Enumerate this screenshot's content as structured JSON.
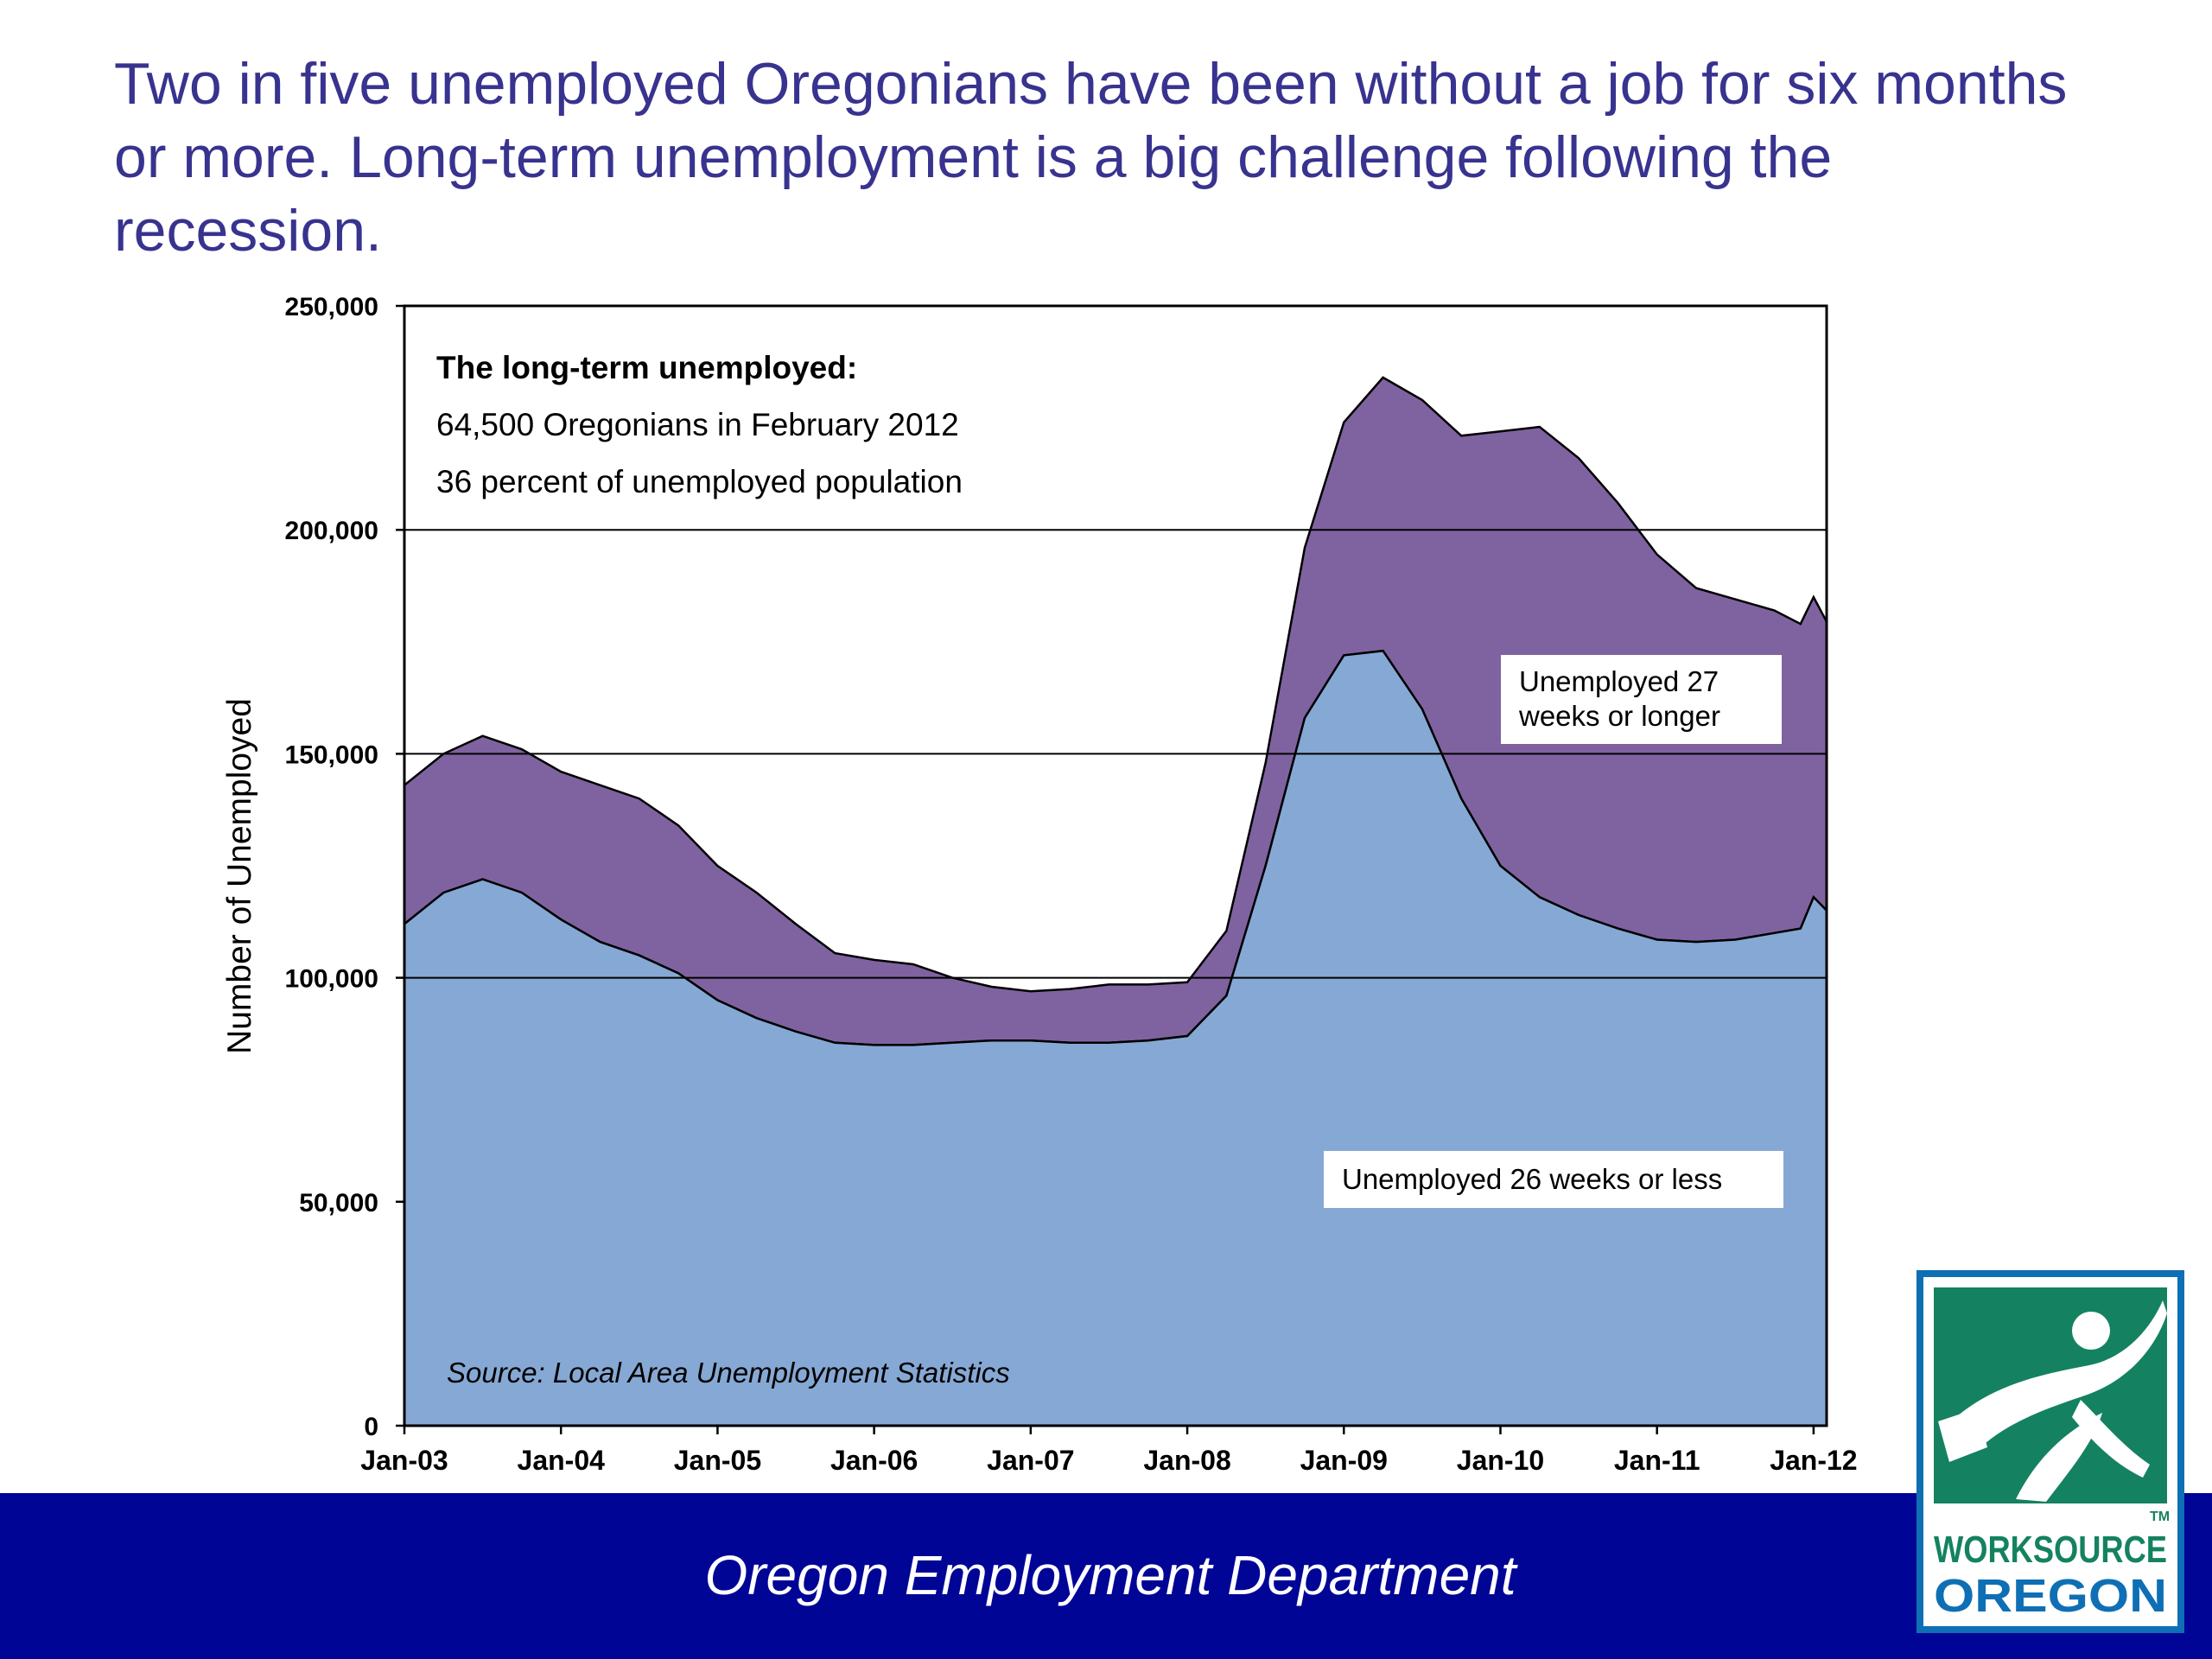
{
  "slide": {
    "title": "Two in five unemployed Oregonians have been without a job for six months or more. Long-term unemployment is a big challenge following the recession.",
    "footer": "Oregon Employment Department"
  },
  "logo": {
    "line1": "WORKSOURCE",
    "line2": "OREGON",
    "tm": "TM",
    "colors": {
      "frame": "#0f6fb5",
      "field": "#148260",
      "figure": "#ffffff"
    }
  },
  "annotation": {
    "heading": "The long-term unemployed:",
    "line1": "64,500 Oregonians in February 2012",
    "line2": "36 percent of unemployed population"
  },
  "source": "Source: Local Area Unemployment Statistics",
  "chart_data": {
    "type": "area",
    "stacked": true,
    "title": "",
    "xlabel": "",
    "ylabel": "Number of Unemployed",
    "ylim": [
      0,
      250000
    ],
    "yticks": [
      0,
      50000,
      100000,
      150000,
      200000,
      250000
    ],
    "ytick_labels": [
      "0",
      "50,000",
      "100,000",
      "150,000",
      "200,000",
      "250,000"
    ],
    "xticks": [
      "Jan-03",
      "Jan-04",
      "Jan-05",
      "Jan-06",
      "Jan-07",
      "Jan-08",
      "Jan-09",
      "Jan-10",
      "Jan-11",
      "Jan-12"
    ],
    "grid": {
      "horizontal": [
        100000,
        150000,
        200000
      ]
    },
    "x": [
      "Jan-03",
      "Apr-03",
      "Jul-03",
      "Oct-03",
      "Jan-04",
      "Apr-04",
      "Jul-04",
      "Oct-04",
      "Jan-05",
      "Apr-05",
      "Jul-05",
      "Oct-05",
      "Jan-06",
      "Apr-06",
      "Jul-06",
      "Oct-06",
      "Jan-07",
      "Apr-07",
      "Jul-07",
      "Oct-07",
      "Jan-08",
      "Apr-08",
      "Jul-08",
      "Oct-08",
      "Jan-09",
      "Apr-09",
      "Jul-09",
      "Oct-09",
      "Jan-10",
      "Apr-10",
      "Jul-10",
      "Oct-10",
      "Jan-11",
      "Apr-11",
      "Jul-11",
      "Oct-11",
      "Dec-11",
      "Jan-12",
      "Feb-12"
    ],
    "series": [
      {
        "name": "Unemployed 26 weeks or less",
        "color": "#86a8d4",
        "values": [
          112000,
          119000,
          122000,
          119000,
          113000,
          108000,
          105000,
          101000,
          95000,
          91000,
          88000,
          85500,
          85000,
          85000,
          85500,
          86000,
          86000,
          85500,
          85500,
          86000,
          87000,
          96000,
          125000,
          158000,
          172000,
          173000,
          160000,
          140000,
          125000,
          118000,
          114000,
          111000,
          108500,
          108000,
          108500,
          110000,
          111000,
          118000,
          115000
        ]
      },
      {
        "name": "Unemployed 27 weeks or longer",
        "color": "#7f63a0",
        "values": [
          31000,
          31000,
          32000,
          32000,
          33000,
          35000,
          35000,
          33000,
          30000,
          28000,
          24000,
          20000,
          19000,
          18000,
          14500,
          12000,
          11000,
          12000,
          13000,
          12500,
          12000,
          14500,
          23000,
          38000,
          52000,
          61000,
          69000,
          81000,
          97000,
          105000,
          102000,
          95000,
          86000,
          79000,
          76000,
          72000,
          68000,
          67000,
          64500
        ]
      }
    ]
  }
}
